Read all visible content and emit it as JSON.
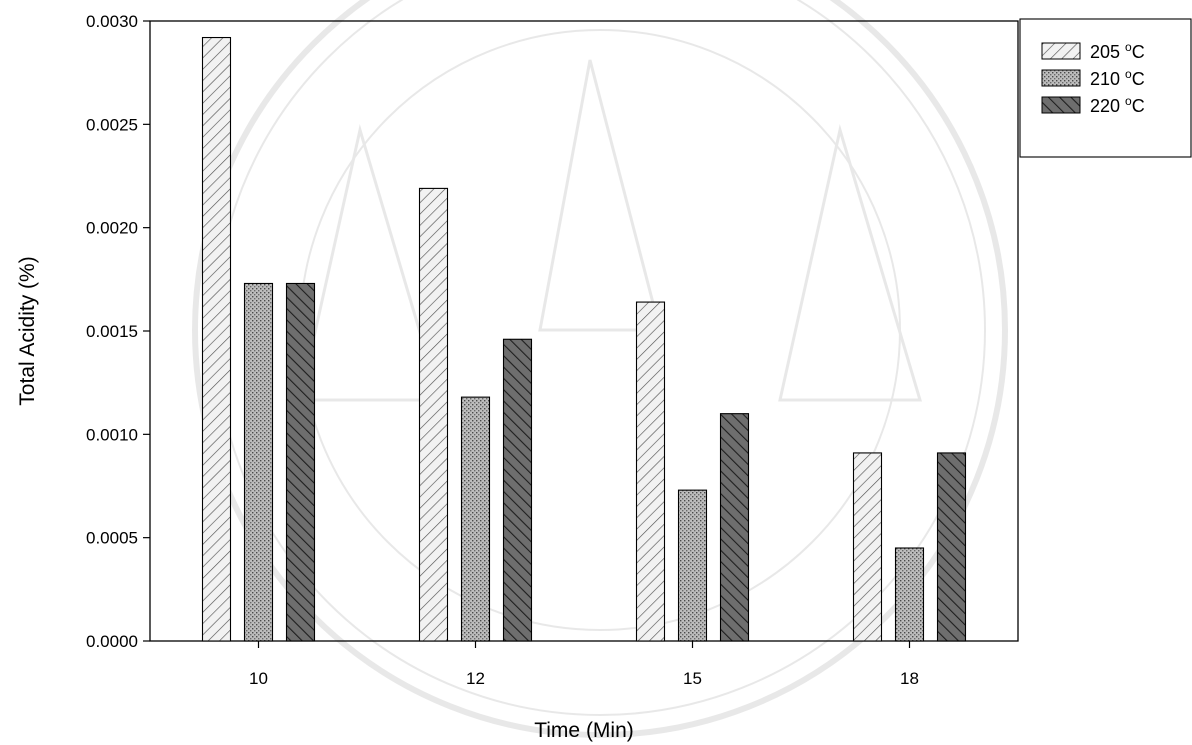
{
  "chart_data": {
    "type": "bar",
    "title": "",
    "xlabel": "Time (Min)",
    "ylabel": "Total Acidity (%)",
    "categories": [
      "10",
      "12",
      "15",
      "18"
    ],
    "ylim": [
      0,
      0.003
    ],
    "yticks": [
      "0.0000",
      "0.0005",
      "0.0010",
      "0.0015",
      "0.0020",
      "0.0025",
      "0.0030"
    ],
    "legend_position": "top-right outside plot",
    "series": [
      {
        "name": "205 °C",
        "label_value": "205",
        "label_unit": "C",
        "pattern": "diagonal-hatch-light",
        "color": "#d8d8d8",
        "values": [
          0.00292,
          0.00219,
          0.00164,
          0.00091
        ]
      },
      {
        "name": "210 °C",
        "label_value": "210",
        "label_unit": "C",
        "pattern": "dotted-gray",
        "color": "#a8a8a8",
        "values": [
          0.00173,
          0.00118,
          0.00073,
          0.00045
        ]
      },
      {
        "name": "220 °C",
        "label_value": "220",
        "label_unit": "C",
        "pattern": "diagonal-hatch-dark",
        "color": "#555555",
        "values": [
          0.00173,
          0.00146,
          0.0011,
          0.00091
        ]
      }
    ]
  }
}
